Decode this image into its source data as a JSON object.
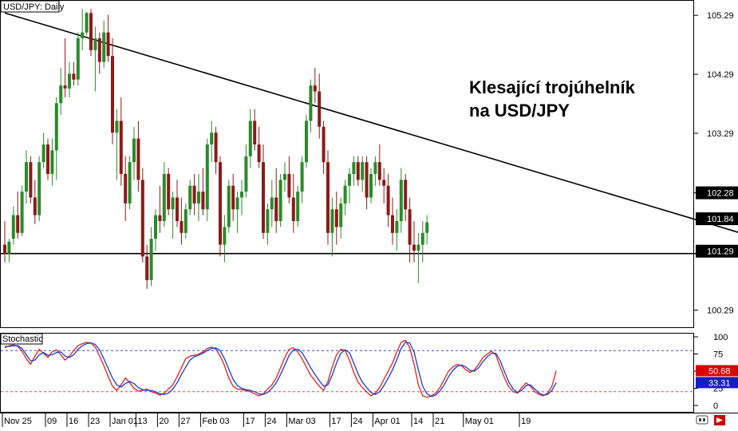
{
  "chart_data": [
    {
      "type": "candlestick",
      "title": "USD/JPY: Daily",
      "annotation": [
        "Klesající trojúhelník",
        "na USD/JPY"
      ],
      "y_ticks": [
        "105.29",
        "104.29",
        "103.29",
        "102.28",
        "100.29"
      ],
      "ylim": [
        100.0,
        105.55
      ],
      "price_badges": [
        {
          "label": "102.28",
          "value": 102.28,
          "color": "#000000"
        },
        {
          "label": "101.84",
          "value": 101.84,
          "color": "#000000"
        },
        {
          "label": "101.29",
          "value": 101.29,
          "color": "#000000"
        }
      ],
      "trendlines": [
        {
          "name": "descending resistance",
          "from": [
            0,
            105.33
          ],
          "to": [
            189,
            101.2
          ]
        },
        {
          "name": "horizontal support",
          "from": [
            -1,
            101.25
          ],
          "to": [
            189,
            101.25
          ]
        }
      ],
      "ohlc": [
        [
          101.4,
          101.8,
          101.1,
          101.25
        ],
        [
          101.25,
          101.5,
          101.1,
          101.45
        ],
        [
          101.5,
          102.05,
          101.4,
          101.9
        ],
        [
          101.9,
          102.3,
          101.5,
          101.6
        ],
        [
          101.6,
          102.4,
          101.55,
          102.3
        ],
        [
          102.3,
          103.0,
          102.1,
          102.8
        ],
        [
          102.8,
          102.9,
          102.1,
          102.2
        ],
        [
          102.2,
          102.5,
          101.75,
          101.9
        ],
        [
          101.9,
          102.9,
          101.8,
          102.8
        ],
        [
          102.8,
          103.3,
          102.7,
          103.1
        ],
        [
          103.1,
          103.2,
          102.5,
          102.6
        ],
        [
          102.6,
          103.2,
          102.4,
          103.0
        ],
        [
          103.0,
          103.9,
          102.5,
          103.8
        ],
        [
          103.8,
          104.4,
          103.6,
          104.1
        ],
        [
          104.1,
          104.9,
          103.9,
          104.05
        ],
        [
          104.05,
          104.5,
          103.9,
          104.3
        ],
        [
          104.3,
          104.5,
          104.1,
          104.2
        ],
        [
          104.2,
          105.0,
          104.1,
          104.9
        ],
        [
          104.9,
          105.4,
          104.7,
          105.0
        ],
        [
          105.0,
          105.35,
          104.95,
          105.33
        ],
        [
          105.33,
          105.4,
          104.6,
          104.7
        ],
        [
          104.7,
          105.1,
          104.0,
          104.9
        ],
        [
          104.9,
          105.0,
          104.3,
          104.5
        ],
        [
          104.5,
          105.2,
          104.4,
          105.0
        ],
        [
          105.0,
          105.3,
          104.5,
          104.6
        ],
        [
          104.6,
          104.9,
          103.1,
          103.3
        ],
        [
          103.3,
          103.7,
          102.5,
          103.5
        ],
        [
          103.5,
          103.9,
          102.4,
          102.6
        ],
        [
          102.6,
          102.9,
          101.8,
          102.1
        ],
        [
          102.1,
          102.9,
          102.0,
          102.8
        ],
        [
          102.8,
          103.4,
          102.5,
          103.2
        ],
        [
          103.2,
          103.5,
          102.3,
          102.5
        ],
        [
          102.5,
          102.7,
          101.1,
          101.2
        ],
        [
          101.2,
          101.4,
          100.65,
          100.8
        ],
        [
          100.8,
          101.7,
          100.7,
          101.5
        ],
        [
          101.5,
          102.0,
          101.3,
          101.9
        ],
        [
          101.9,
          102.4,
          101.6,
          101.8
        ],
        [
          101.8,
          102.8,
          101.7,
          102.6
        ],
        [
          102.6,
          102.7,
          101.9,
          102.0
        ],
        [
          102.0,
          102.3,
          101.5,
          102.2
        ],
        [
          102.2,
          102.5,
          101.7,
          101.8
        ],
        [
          101.8,
          102.2,
          101.4,
          101.6
        ],
        [
          101.6,
          102.1,
          101.5,
          102.0
        ],
        [
          102.0,
          102.5,
          101.9,
          102.4
        ],
        [
          102.4,
          102.6,
          101.9,
          102.1
        ],
        [
          102.1,
          102.6,
          101.8,
          102.3
        ],
        [
          102.3,
          102.7,
          101.9,
          102.0
        ],
        [
          102.0,
          103.2,
          101.8,
          103.1
        ],
        [
          103.1,
          103.5,
          102.8,
          103.3
        ],
        [
          103.3,
          103.4,
          102.6,
          102.8
        ],
        [
          102.8,
          102.9,
          101.2,
          101.4
        ],
        [
          101.4,
          101.9,
          101.1,
          101.7
        ],
        [
          101.7,
          102.5,
          101.6,
          102.4
        ],
        [
          102.4,
          102.6,
          101.8,
          102.0
        ],
        [
          102.0,
          102.3,
          101.6,
          102.2
        ],
        [
          102.2,
          102.5,
          101.9,
          102.3
        ],
        [
          102.3,
          103.1,
          102.2,
          102.9
        ],
        [
          102.9,
          103.7,
          102.7,
          103.5
        ],
        [
          103.5,
          103.7,
          103.0,
          103.1
        ],
        [
          103.1,
          103.4,
          102.7,
          102.8
        ],
        [
          102.8,
          103.1,
          101.5,
          101.6
        ],
        [
          101.6,
          102.1,
          101.4,
          102.0
        ],
        [
          102.0,
          102.5,
          101.7,
          102.2
        ],
        [
          102.2,
          102.7,
          101.6,
          101.8
        ],
        [
          101.8,
          102.6,
          101.7,
          102.5
        ],
        [
          102.5,
          102.8,
          102.3,
          102.6
        ],
        [
          102.6,
          102.9,
          102.1,
          102.2
        ],
        [
          102.2,
          102.6,
          101.6,
          101.8
        ],
        [
          101.8,
          102.4,
          101.7,
          102.3
        ],
        [
          102.3,
          102.9,
          102.1,
          102.8
        ],
        [
          102.8,
          103.6,
          102.7,
          103.5
        ],
        [
          103.5,
          104.2,
          103.3,
          104.1
        ],
        [
          104.1,
          104.4,
          103.8,
          104.0
        ],
        [
          104.0,
          104.3,
          103.2,
          103.4
        ],
        [
          103.4,
          103.5,
          102.6,
          102.8
        ],
        [
          102.8,
          103.0,
          101.4,
          101.6
        ],
        [
          101.6,
          102.2,
          101.2,
          102.0
        ],
        [
          102.0,
          102.3,
          101.4,
          101.7
        ],
        [
          101.7,
          102.2,
          101.5,
          102.1
        ],
        [
          102.1,
          102.5,
          101.9,
          102.4
        ],
        [
          102.4,
          102.7,
          102.1,
          102.6
        ],
        [
          102.6,
          102.9,
          102.4,
          102.8
        ],
        [
          102.8,
          102.9,
          102.4,
          102.5
        ],
        [
          102.5,
          102.9,
          102.3,
          102.8
        ],
        [
          102.8,
          102.9,
          102.0,
          102.2
        ],
        [
          102.2,
          102.7,
          102.1,
          102.6
        ],
        [
          102.6,
          102.9,
          102.4,
          102.8
        ],
        [
          102.8,
          103.1,
          102.4,
          102.5
        ],
        [
          102.5,
          102.7,
          102.1,
          102.4
        ],
        [
          102.4,
          102.6,
          101.7,
          101.9
        ],
        [
          101.9,
          102.2,
          101.4,
          101.6
        ],
        [
          101.6,
          102.0,
          101.3,
          101.8
        ],
        [
          101.8,
          102.7,
          101.6,
          102.5
        ],
        [
          102.5,
          102.6,
          101.8,
          102.0
        ],
        [
          102.0,
          102.2,
          101.1,
          101.4
        ],
        [
          101.4,
          101.8,
          101.1,
          101.3
        ],
        [
          101.3,
          101.6,
          100.75,
          101.4
        ],
        [
          101.4,
          101.8,
          101.1,
          101.6
        ],
        [
          101.6,
          101.9,
          101.4,
          101.78
        ]
      ],
      "x_labels": [
        {
          "label": "Nov 25",
          "bar": 0
        },
        {
          "label": "09",
          "bar": 10
        },
        {
          "label": "16",
          "bar": 15
        },
        {
          "label": "23",
          "bar": 20
        },
        {
          "label": "Jan 01",
          "bar": 25
        },
        {
          "label": "13",
          "bar": 31
        },
        {
          "label": "20",
          "bar": 36
        },
        {
          "label": "27",
          "bar": 41
        },
        {
          "label": "Feb 03",
          "bar": 46
        },
        {
          "label": "17",
          "bar": 56
        },
        {
          "label": "24",
          "bar": 61
        },
        {
          "label": "Mar 03",
          "bar": 66
        },
        {
          "label": "17",
          "bar": 76
        },
        {
          "label": "24",
          "bar": 81
        },
        {
          "label": "Apr 01",
          "bar": 86
        },
        {
          "label": "14",
          "bar": 95
        },
        {
          "label": "21",
          "bar": 100
        },
        {
          "label": "May 01",
          "bar": 107
        },
        {
          "label": "19",
          "bar": 120
        }
      ]
    },
    {
      "type": "line",
      "title": "Stochastic",
      "ylim": [
        0,
        100
      ],
      "y_ticks": [
        "100",
        "75",
        "50",
        "25",
        "0"
      ],
      "levels": [
        {
          "value": 80,
          "color": "#3b4ccf"
        },
        {
          "value": 20,
          "color": "#e23b3b"
        }
      ],
      "badges": [
        {
          "label": "50.68",
          "value": 50.68,
          "color": "#dd0000"
        },
        {
          "label": "33.31",
          "value": 33.31,
          "color": "#1a1acc"
        }
      ],
      "series": [
        {
          "color": "#e02020",
          "values": [
            84,
            87,
            88,
            86,
            79,
            68,
            60,
            72,
            82,
            76,
            70,
            78,
            81,
            74,
            66,
            72,
            80,
            87,
            90,
            92,
            91,
            85,
            72,
            58,
            42,
            28,
            22,
            30,
            40,
            33,
            25,
            21,
            22,
            24,
            20,
            18,
            15,
            18,
            24,
            30,
            42,
            55,
            68,
            72,
            73,
            75,
            78,
            83,
            85,
            82,
            72,
            58,
            40,
            28,
            24,
            23,
            22,
            20,
            17,
            14,
            17,
            24,
            30,
            40,
            55,
            70,
            82,
            84,
            78,
            68,
            56,
            44,
            36,
            28,
            22,
            35,
            56,
            74,
            82,
            80,
            66,
            48,
            34,
            26,
            20,
            14,
            18,
            26,
            38,
            50,
            62,
            78,
            92,
            95,
            84,
            60,
            30,
            14,
            12,
            14,
            18,
            26,
            38,
            50,
            56,
            60,
            58,
            52,
            48,
            52,
            60,
            70,
            75,
            79,
            73,
            56,
            40,
            27,
            20,
            18,
            26,
            33,
            28,
            20,
            16,
            14,
            18,
            28,
            50.68
          ]
        },
        {
          "color": "#1a3ccc",
          "values": [
            86,
            86,
            87,
            87,
            83,
            74,
            65,
            66,
            74,
            77,
            73,
            74,
            77,
            78,
            72,
            70,
            74,
            82,
            87,
            90,
            91,
            89,
            81,
            68,
            54,
            40,
            30,
            27,
            32,
            35,
            32,
            26,
            23,
            22,
            22,
            20,
            17,
            16,
            18,
            24,
            33,
            45,
            56,
            66,
            71,
            73,
            76,
            80,
            83,
            84,
            80,
            68,
            53,
            38,
            29,
            25,
            23,
            22,
            20,
            17,
            16,
            19,
            25,
            33,
            45,
            59,
            73,
            81,
            82,
            77,
            66,
            55,
            45,
            36,
            28,
            30,
            44,
            62,
            76,
            81,
            77,
            62,
            46,
            34,
            26,
            19,
            16,
            20,
            29,
            40,
            52,
            67,
            83,
            92,
            91,
            78,
            52,
            28,
            17,
            13,
            15,
            21,
            30,
            42,
            51,
            57,
            59,
            56,
            51,
            50,
            55,
            64,
            71,
            76,
            76,
            65,
            49,
            34,
            24,
            19,
            22,
            29,
            30,
            24,
            18,
            15,
            16,
            22,
            33.31
          ]
        }
      ]
    }
  ],
  "toolbar": {
    "scroll_icon": "scroll-icon",
    "arrow_icon": "arrow-right-icon"
  }
}
